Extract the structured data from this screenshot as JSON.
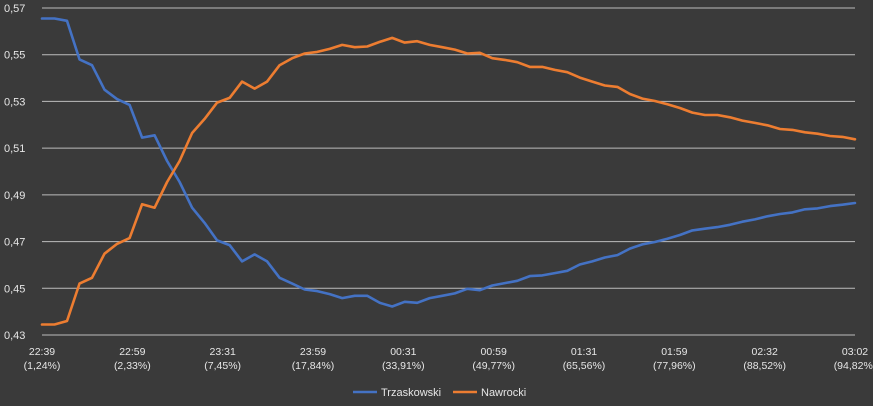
{
  "chart_data": {
    "type": "line",
    "title": "",
    "xlabel": "",
    "ylabel": "",
    "ylim": [
      0.43,
      0.57
    ],
    "yticks": [
      "0,43",
      "0,45",
      "0,47",
      "0,49",
      "0,51",
      "0,53",
      "0,55",
      "0,57"
    ],
    "xtick_labels": [
      {
        "time": "22:39",
        "percent": "(1,24%)"
      },
      {
        "time": "22:59",
        "percent": "(2,33%)"
      },
      {
        "time": "23:31",
        "percent": "(7,45%)"
      },
      {
        "time": "23:59",
        "percent": "(17,84%)"
      },
      {
        "time": "00:31",
        "percent": "(33,91%)"
      },
      {
        "time": "00:59",
        "percent": "(49,77%)"
      },
      {
        "time": "01:31",
        "percent": "(65,56%)"
      },
      {
        "time": "01:59",
        "percent": "(77,96%)"
      },
      {
        "time": "02:32",
        "percent": "(88,52%)"
      },
      {
        "time": "03:02",
        "percent": "(94,82%)"
      }
    ],
    "grid": true,
    "legend_position": "bottom",
    "series": [
      {
        "name": "Trzaskowski",
        "color": "#4472c4",
        "values": [
          0.5655,
          0.5655,
          0.5645,
          0.548,
          0.5455,
          0.535,
          0.531,
          0.5285,
          0.5145,
          0.5155,
          0.5045,
          0.4955,
          0.4845,
          0.478,
          0.4705,
          0.4685,
          0.4615,
          0.4645,
          0.4615,
          0.4545,
          0.452,
          0.4495,
          0.4488,
          0.4475,
          0.4458,
          0.4468,
          0.4468,
          0.4438,
          0.4422,
          0.4442,
          0.4438,
          0.4458,
          0.4468,
          0.4478,
          0.4498,
          0.4492,
          0.4512,
          0.4522,
          0.4532,
          0.4552,
          0.4555,
          0.4565,
          0.4575,
          0.4602,
          0.4615,
          0.4632,
          0.4642,
          0.467,
          0.4688,
          0.4698,
          0.4712,
          0.4728,
          0.4748,
          0.4755,
          0.4762,
          0.4772,
          0.4785,
          0.4795,
          0.4808,
          0.4818,
          0.4825,
          0.4838,
          0.4842,
          0.4852,
          0.4858,
          0.4865
        ]
      },
      {
        "name": "Nawrocki",
        "color": "#ed7d31",
        "values": [
          0.4345,
          0.4345,
          0.436,
          0.452,
          0.4545,
          0.4648,
          0.469,
          0.4715,
          0.486,
          0.4845,
          0.4955,
          0.5045,
          0.5165,
          0.5225,
          0.5295,
          0.5315,
          0.5385,
          0.5355,
          0.5385,
          0.5455,
          0.5485,
          0.5505,
          0.5512,
          0.5525,
          0.5542,
          0.5532,
          0.5535,
          0.5555,
          0.5572,
          0.5552,
          0.5558,
          0.5542,
          0.5532,
          0.5522,
          0.5505,
          0.5508,
          0.5485,
          0.5478,
          0.5468,
          0.5448,
          0.5448,
          0.5435,
          0.5425,
          0.5402,
          0.5385,
          0.5368,
          0.5362,
          0.5332,
          0.5312,
          0.5302,
          0.5288,
          0.5272,
          0.5252,
          0.5242,
          0.5242,
          0.5232,
          0.5218,
          0.5208,
          0.5198,
          0.5182,
          0.5178,
          0.5168,
          0.5162,
          0.5152,
          0.5148,
          0.5138
        ]
      }
    ]
  }
}
